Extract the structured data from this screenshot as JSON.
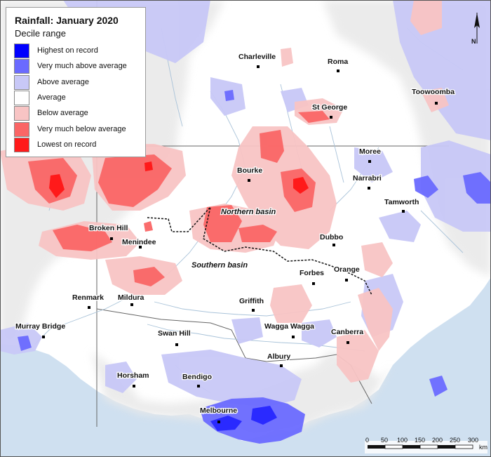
{
  "legend": {
    "title": "Rainfall: January 2020",
    "subtitle": "Decile range",
    "items": [
      {
        "label": "Highest on record",
        "color": "#0000ff"
      },
      {
        "label": "Very much above average",
        "color": "#6a6aff"
      },
      {
        "label": "Above average",
        "color": "#c8c8f7"
      },
      {
        "label": "Average",
        "color": "#ffffff"
      },
      {
        "label": "Below average",
        "color": "#f8c4c4"
      },
      {
        "label": "Very much below average",
        "color": "#fa6666"
      },
      {
        "label": "Lowest on record",
        "color": "#ff1a1a"
      }
    ]
  },
  "places": [
    {
      "name": "Charleville"
    },
    {
      "name": "Roma"
    },
    {
      "name": "Toowoomba"
    },
    {
      "name": "St George"
    },
    {
      "name": "Moree"
    },
    {
      "name": "Bourke"
    },
    {
      "name": "Narrabri"
    },
    {
      "name": "Tamworth"
    },
    {
      "name": "Broken Hill"
    },
    {
      "name": "Menindee"
    },
    {
      "name": "Dubbo"
    },
    {
      "name": "Forbes"
    },
    {
      "name": "Orange"
    },
    {
      "name": "Renmark"
    },
    {
      "name": "Mildura"
    },
    {
      "name": "Griffith"
    },
    {
      "name": "Murray Bridge"
    },
    {
      "name": "Wagga Wagga"
    },
    {
      "name": "Swan Hill"
    },
    {
      "name": "Canberra"
    },
    {
      "name": "Albury"
    },
    {
      "name": "Horsham"
    },
    {
      "name": "Bendigo"
    },
    {
      "name": "Melbourne"
    }
  ],
  "basins": {
    "northern": "Northern basin",
    "southern": "Southern basin"
  },
  "scale": {
    "ticks": [
      "0",
      "50",
      "100",
      "150",
      "200",
      "250",
      "300"
    ],
    "unit": "km"
  },
  "north_label": "N",
  "colors": {
    "ocean": "#cfe0f0",
    "land": "#ffffff",
    "outside_basin": "#ececec",
    "river": "#a9c3d9"
  }
}
